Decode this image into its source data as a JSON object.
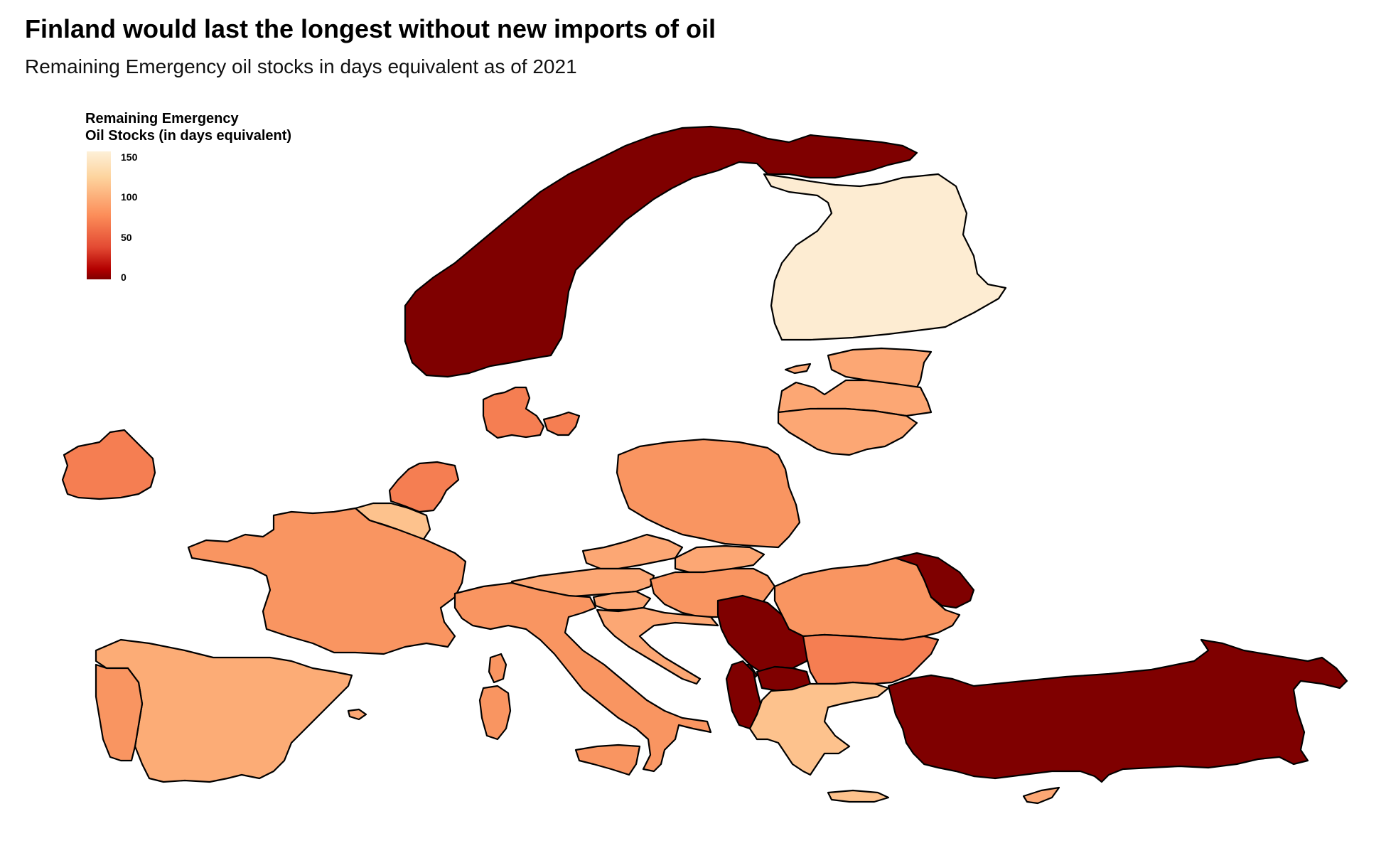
{
  "title": "Finland would last the longest without new imports of oil",
  "subtitle": "Remaining Emergency oil stocks in days equivalent as of 2021",
  "legend": {
    "title_line1": "Remaining Emergency",
    "title_line2": "Oil Stocks (in days equivalent)",
    "ticks": [
      "150",
      "100",
      "50",
      "0"
    ]
  },
  "colors": {
    "none": "#7f0000",
    "low": "#b30000",
    "mid": "#fc8d59",
    "high": "#fdd49e",
    "max": "#fdf0d8"
  },
  "chart_data": {
    "type": "choropleth",
    "scale": {
      "min": 0,
      "max": 150,
      "palette": "OrRd-reversed"
    },
    "regions": [
      {
        "name": "Finland",
        "value": 150
      },
      {
        "name": "Norway",
        "value": 0
      },
      {
        "name": "Estonia",
        "value": 100
      },
      {
        "name": "Latvia",
        "value": 100
      },
      {
        "name": "Lithuania",
        "value": 100
      },
      {
        "name": "Denmark",
        "value": 80
      },
      {
        "name": "Ireland",
        "value": 80
      },
      {
        "name": "Netherlands",
        "value": 85
      },
      {
        "name": "Belgium",
        "value": 110
      },
      {
        "name": "Luxembourg",
        "value": 120
      },
      {
        "name": "France",
        "value": 95
      },
      {
        "name": "Spain",
        "value": 105
      },
      {
        "name": "Portugal",
        "value": 95
      },
      {
        "name": "Poland",
        "value": 95
      },
      {
        "name": "Czechia",
        "value": 100
      },
      {
        "name": "Slovakia",
        "value": 100
      },
      {
        "name": "Austria",
        "value": 95
      },
      {
        "name": "Hungary",
        "value": 95
      },
      {
        "name": "Slovenia",
        "value": 95
      },
      {
        "name": "Croatia",
        "value": 100
      },
      {
        "name": "Italy",
        "value": 95
      },
      {
        "name": "Romania",
        "value": 90
      },
      {
        "name": "Bulgaria",
        "value": 80
      },
      {
        "name": "Greece",
        "value": 120
      },
      {
        "name": "Cyprus",
        "value": 95
      },
      {
        "name": "Serbia",
        "value": 0
      },
      {
        "name": "Bosnia and Herzegovina",
        "value": 0
      },
      {
        "name": "Montenegro",
        "value": 0
      },
      {
        "name": "Albania",
        "value": 0
      },
      {
        "name": "North Macedonia",
        "value": 0
      },
      {
        "name": "Moldova",
        "value": 0
      },
      {
        "name": "Turkey",
        "value": 0
      }
    ]
  }
}
